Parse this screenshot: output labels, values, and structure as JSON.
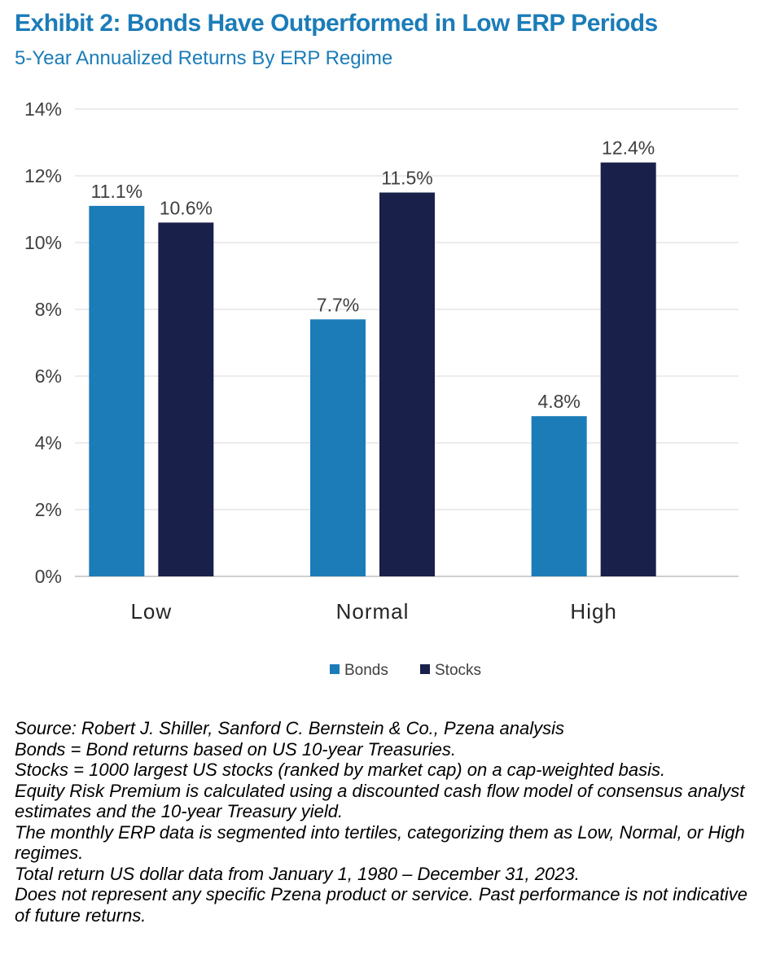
{
  "title": "Exhibit 2: Bonds Have Outperformed in Low ERP Periods",
  "subtitle": "5-Year Annualized Returns By ERP Regime",
  "colors": {
    "title": "#1b7cb8",
    "bonds": "#1b7cb8",
    "stocks": "#192049",
    "grid": "#d9d9d9",
    "axis_text": "#404040"
  },
  "chart_data": {
    "type": "bar",
    "categories": [
      "Low",
      "Normal",
      "High"
    ],
    "series": [
      {
        "name": "Bonds",
        "values": [
          11.1,
          7.7,
          4.8
        ],
        "labels": [
          "11.1%",
          "7.7%",
          "4.8%"
        ]
      },
      {
        "name": "Stocks",
        "values": [
          10.6,
          11.5,
          12.4
        ],
        "labels": [
          "10.6%",
          "11.5%",
          "12.4%"
        ]
      }
    ],
    "yticks": [
      "0%",
      "2%",
      "4%",
      "6%",
      "8%",
      "10%",
      "12%",
      "14%"
    ],
    "ylim": [
      0,
      14
    ],
    "grid": true,
    "legend": "bottom-center"
  },
  "notes": [
    "Source: Robert J. Shiller, Sanford C. Bernstein & Co., Pzena analysis",
    "Bonds = Bond returns based on US 10-year Treasuries.",
    "Stocks = 1000 largest US stocks (ranked by market cap) on a cap-weighted basis.",
    "Equity Risk Premium is calculated using a discounted cash flow model of consensus analyst estimates and the 10-year Treasury yield.",
    "The monthly ERP data is segmented into tertiles, categorizing them as Low, Normal, or High regimes.",
    "Total return US dollar data from January 1, 1980 – December 31, 2023.",
    "Does not represent any specific Pzena product or service. Past performance is not indicative of future returns."
  ]
}
